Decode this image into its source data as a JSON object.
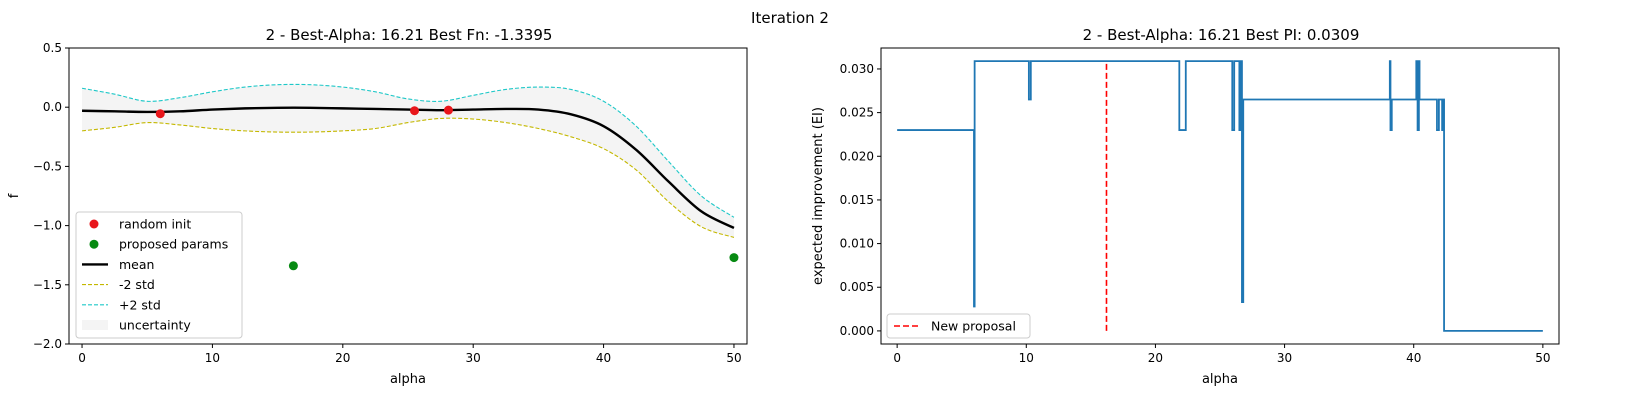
{
  "figure": {
    "suptitle": "Iteration 2"
  },
  "chart_data": [
    {
      "type": "line",
      "title": "2 - Best-Alpha: 16.21 Best Fn: -1.3395",
      "xlabel": "alpha",
      "ylabel": "f",
      "xlim": [
        -1,
        51
      ],
      "ylim": [
        -2.0,
        0.5
      ],
      "xticks": [
        0,
        10,
        20,
        30,
        40,
        50
      ],
      "yticks": [
        0.5,
        0.0,
        -0.5,
        -1.0,
        -1.5,
        -2.0
      ],
      "xtick_labels": [
        "0",
        "10",
        "20",
        "30",
        "40",
        "50"
      ],
      "ytick_labels": [
        "0.5",
        "0.0",
        "−0.5",
        "−1.0",
        "−1.5",
        "−2.0"
      ],
      "grid": false,
      "legend_position": "lower-left",
      "x": [
        0,
        2.5,
        5,
        7.5,
        10,
        12.5,
        15,
        17.5,
        20,
        22.5,
        25,
        27.5,
        30,
        32.5,
        35,
        37.5,
        40,
        42.5,
        45,
        47.5,
        50
      ],
      "series": [
        {
          "name": "mean",
          "kind": "line",
          "color": "#000000",
          "dash": "solid",
          "values": [
            -0.03,
            -0.035,
            -0.04,
            -0.035,
            -0.02,
            -0.01,
            -0.005,
            -0.005,
            -0.01,
            -0.015,
            -0.02,
            -0.025,
            -0.02,
            -0.015,
            -0.02,
            -0.06,
            -0.16,
            -0.36,
            -0.63,
            -0.88,
            -1.02
          ]
        },
        {
          "name": "-2 std",
          "kind": "line",
          "color": "#c4b800",
          "dash": "dashed",
          "values": [
            -0.2,
            -0.17,
            -0.13,
            -0.15,
            -0.18,
            -0.2,
            -0.21,
            -0.21,
            -0.2,
            -0.18,
            -0.13,
            -0.095,
            -0.1,
            -0.13,
            -0.18,
            -0.25,
            -0.35,
            -0.53,
            -0.8,
            -1.01,
            -1.1
          ]
        },
        {
          "name": "+2 std",
          "kind": "line",
          "color": "#1ec8c8",
          "dash": "dashed",
          "values": [
            0.16,
            0.11,
            0.05,
            0.08,
            0.13,
            0.17,
            0.19,
            0.19,
            0.17,
            0.13,
            0.07,
            0.05,
            0.1,
            0.15,
            0.17,
            0.15,
            0.05,
            -0.16,
            -0.46,
            -0.75,
            -0.93
          ]
        }
      ],
      "uncertainty": {
        "name": "uncertainty",
        "color": "#f4f4f4"
      },
      "scatter": [
        {
          "name": "random init",
          "color": "#e8161b",
          "points": [
            [
              6.0,
              -0.055
            ],
            [
              25.5,
              -0.03
            ],
            [
              28.1,
              -0.025
            ]
          ]
        },
        {
          "name": "proposed params",
          "color": "#078a12",
          "points": [
            [
              16.21,
              -1.3395
            ],
            [
              50.0,
              -1.27
            ]
          ]
        }
      ],
      "legend": [
        "random init",
        "proposed params",
        "mean",
        "-2 std",
        "+2 std",
        "uncertainty"
      ]
    },
    {
      "type": "line",
      "title": "2 - Best-Alpha: 16.21 Best PI: 0.0309",
      "xlabel": "alpha",
      "ylabel": "expected improvement (EI)",
      "xlim": [
        -1.25,
        51.25
      ],
      "ylim": [
        -0.0015,
        0.0324
      ],
      "xticks": [
        0,
        10,
        20,
        30,
        40,
        50
      ],
      "yticks": [
        0.0,
        0.005,
        0.01,
        0.015,
        0.02,
        0.025,
        0.03
      ],
      "xtick_labels": [
        "0",
        "10",
        "20",
        "30",
        "40",
        "50"
      ],
      "ytick_labels": [
        "0.000",
        "0.005",
        "0.010",
        "0.015",
        "0.020",
        "0.025",
        "0.030"
      ],
      "grid": false,
      "legend_position": "lower-left",
      "series": [
        {
          "name": "EI",
          "kind": "step",
          "color": "#1f77b4",
          "points": [
            [
              0,
              0.023
            ],
            [
              5.95,
              0.023
            ],
            [
              5.95,
              0.0028
            ],
            [
              6.0,
              0.0028
            ],
            [
              6.0,
              0.0309
            ],
            [
              10.2,
              0.0309
            ],
            [
              10.2,
              0.0265
            ],
            [
              10.35,
              0.0265
            ],
            [
              10.35,
              0.0309
            ],
            [
              21.85,
              0.0309
            ],
            [
              21.85,
              0.023
            ],
            [
              22.35,
              0.023
            ],
            [
              22.35,
              0.0309
            ],
            [
              25.95,
              0.0309
            ],
            [
              25.95,
              0.023
            ],
            [
              26.1,
              0.023
            ],
            [
              26.1,
              0.0309
            ],
            [
              26.5,
              0.0309
            ],
            [
              26.5,
              0.023
            ],
            [
              26.6,
              0.023
            ],
            [
              26.6,
              0.0309
            ],
            [
              26.7,
              0.0309
            ],
            [
              26.7,
              0.0033
            ],
            [
              26.8,
              0.0033
            ],
            [
              26.8,
              0.0265
            ],
            [
              38.15,
              0.0265
            ],
            [
              38.15,
              0.0309
            ],
            [
              38.2,
              0.0309
            ],
            [
              38.2,
              0.023
            ],
            [
              38.3,
              0.023
            ],
            [
              38.3,
              0.0265
            ],
            [
              40.2,
              0.0265
            ],
            [
              40.2,
              0.0309
            ],
            [
              40.3,
              0.0309
            ],
            [
              40.3,
              0.023
            ],
            [
              40.4,
              0.023
            ],
            [
              40.4,
              0.0309
            ],
            [
              40.45,
              0.0309
            ],
            [
              40.45,
              0.0265
            ],
            [
              41.8,
              0.0265
            ],
            [
              41.8,
              0.023
            ],
            [
              41.95,
              0.023
            ],
            [
              41.95,
              0.0265
            ],
            [
              42.2,
              0.0265
            ],
            [
              42.2,
              0.023
            ],
            [
              42.3,
              0.023
            ],
            [
              42.3,
              0.0265
            ],
            [
              42.35,
              0.0265
            ],
            [
              42.35,
              0.0
            ],
            [
              50.0,
              0.0
            ]
          ]
        },
        {
          "name": "New proposal",
          "kind": "vline",
          "color": "#ff0000",
          "dash": "dashed",
          "x": 16.21,
          "y_range": [
            0.0,
            0.0309
          ]
        }
      ],
      "legend": [
        "New proposal"
      ]
    }
  ]
}
